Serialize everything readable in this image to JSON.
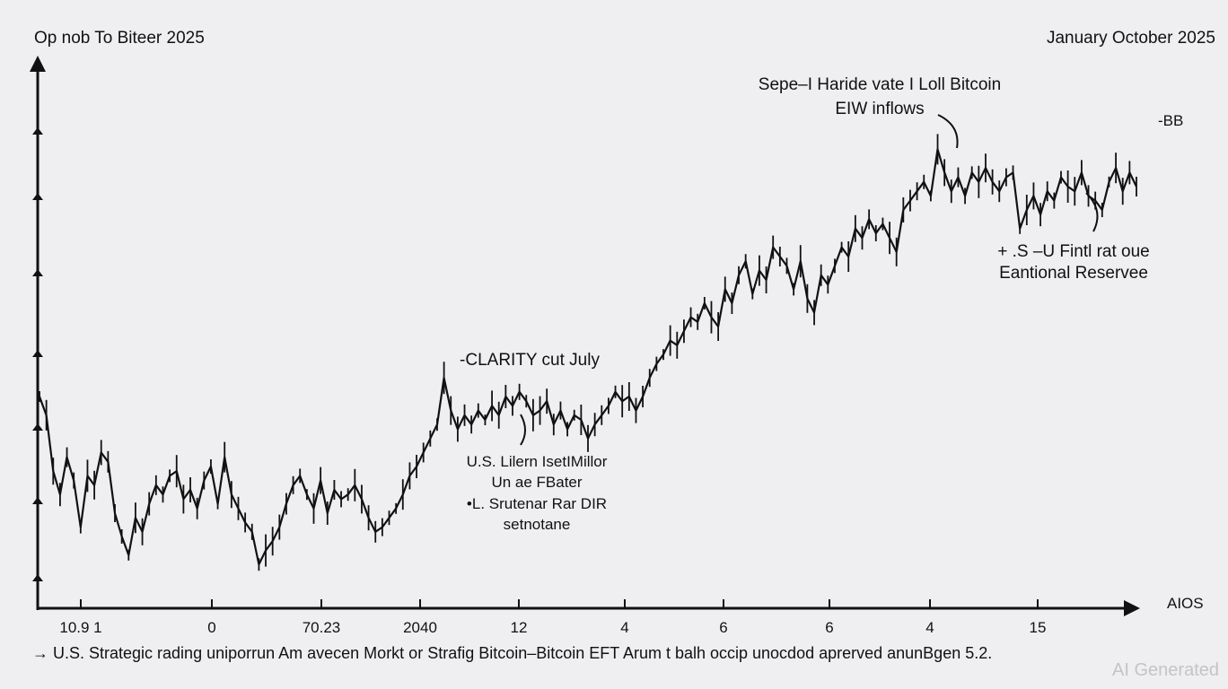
{
  "header": {
    "title_left": "Op nob To Biteer 2025",
    "title_right": "January October 2025"
  },
  "footnote": "→ U.S. Strategic rading uniporrun Am avecen Morkt or Strafig Bitcoin–Bitcoin EFT Arum t balh occip unocdod aprerved anunBgen 5.2.",
  "watermark": "AI Generated",
  "chart_data": {
    "type": "line",
    "title": "Op nob To Biteer 2025",
    "subtitle": "January October 2025",
    "y_axis_label": "-BB",
    "x_axis_label": "AIOS",
    "x_tick_labels": [
      "10.9 1",
      "0",
      "70.23",
      "2040",
      "12",
      "4",
      "6",
      "6",
      "4",
      "15"
    ],
    "grid": false,
    "series": [
      {
        "values": [
          0.4,
          0.36,
          0.24,
          0.19,
          0.27,
          0.22,
          0.12,
          0.23,
          0.21,
          0.28,
          0.26,
          0.15,
          0.1,
          0.06,
          0.14,
          0.11,
          0.17,
          0.21,
          0.19,
          0.23,
          0.24,
          0.18,
          0.2,
          0.16,
          0.22,
          0.25,
          0.17,
          0.27,
          0.19,
          0.16,
          0.13,
          0.11,
          0.04,
          0.07,
          0.09,
          0.12,
          0.17,
          0.21,
          0.23,
          0.19,
          0.16,
          0.22,
          0.15,
          0.2,
          0.18,
          0.19,
          0.21,
          0.18,
          0.14,
          0.11,
          0.12,
          0.14,
          0.16,
          0.19,
          0.23,
          0.25,
          0.28,
          0.31,
          0.34,
          0.44,
          0.37,
          0.33,
          0.36,
          0.34,
          0.37,
          0.35,
          0.38,
          0.36,
          0.4,
          0.38,
          0.41,
          0.39,
          0.36,
          0.37,
          0.39,
          0.34,
          0.37,
          0.33,
          0.36,
          0.35,
          0.31,
          0.34,
          0.36,
          0.38,
          0.41,
          0.39,
          0.4,
          0.37,
          0.4,
          0.44,
          0.47,
          0.49,
          0.52,
          0.51,
          0.54,
          0.57,
          0.56,
          0.6,
          0.57,
          0.55,
          0.63,
          0.6,
          0.66,
          0.69,
          0.62,
          0.67,
          0.65,
          0.72,
          0.7,
          0.68,
          0.63,
          0.69,
          0.61,
          0.58,
          0.66,
          0.64,
          0.68,
          0.72,
          0.7,
          0.76,
          0.74,
          0.78,
          0.75,
          0.77,
          0.74,
          0.71,
          0.8,
          0.82,
          0.84,
          0.86,
          0.83,
          0.93,
          0.88,
          0.84,
          0.87,
          0.83,
          0.88,
          0.86,
          0.89,
          0.86,
          0.84,
          0.87,
          0.88,
          0.76,
          0.8,
          0.83,
          0.79,
          0.84,
          0.82,
          0.87,
          0.85,
          0.84,
          0.88,
          0.83,
          0.82,
          0.8,
          0.86,
          0.89,
          0.84,
          0.88,
          0.85
        ],
        "color": "#111111"
      }
    ],
    "annotations": [
      {
        "lines": [
          "Sepe–I Haride vate I Loll Bitcoin",
          "EIW inflows"
        ]
      },
      {
        "lines": [
          "-CLARITY cut July"
        ]
      },
      {
        "lines": [
          "U.S. Lilern IsetIMillor",
          "Un ae FBater",
          "•L. Srutenar Rar DIR",
          "setnotane"
        ]
      },
      {
        "lines": [
          "+ .S –U Fintl rat oue",
          "Eantional Reservee"
        ]
      }
    ]
  }
}
